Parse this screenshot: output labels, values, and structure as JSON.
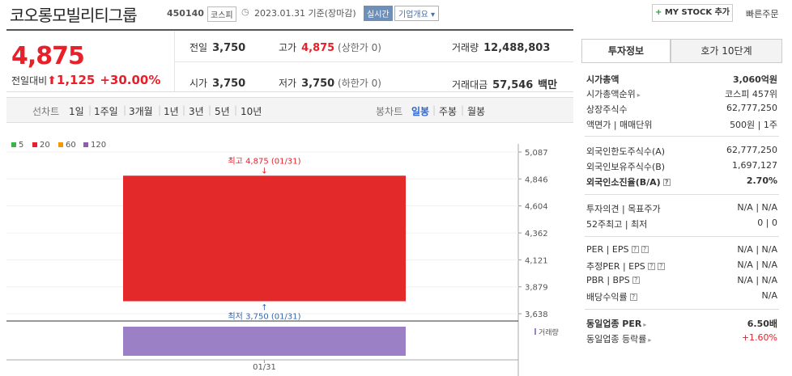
{
  "header": {
    "title": "코오롱모빌리티그룹",
    "code": "450140",
    "market": "코스피",
    "date": "2023.01.31  기준(장마감)",
    "realtime": "실시간",
    "company_info": "기업개요",
    "my_stock": "MY STOCK 추가",
    "my_stock_plus": "+",
    "quick_order": "빠른주문"
  },
  "price": {
    "current": "4,875",
    "change_label": "전일대비",
    "change_value": "1,125",
    "change_pct": "+30.00%",
    "prev_label": "전일",
    "prev": "3,750",
    "high_label": "고가",
    "high": "4,875",
    "high_note": "(상한가 0)",
    "volume_label": "거래량",
    "volume": "12,488,803",
    "open_label": "시가",
    "open": "3,750",
    "low_label": "저가",
    "low": "3,750",
    "low_note": "(하한가 0)",
    "amount_label": "거래대금",
    "amount": "57,546",
    "amount_unit": "백만"
  },
  "tabs": {
    "line_label": "선차트",
    "periods": [
      "1일",
      "1주일",
      "3개월",
      "1년",
      "3년",
      "5년",
      "10년"
    ],
    "candle_label": "봉차트",
    "candles": [
      "일봉",
      "주봉",
      "월봉"
    ]
  },
  "legend": [
    {
      "label": "5",
      "color": "#39b54a"
    },
    {
      "label": "20",
      "color": "#e8202a"
    },
    {
      "label": "60",
      "color": "#f39800"
    },
    {
      "label": "120",
      "color": "#8e5cb5"
    }
  ],
  "chart_data": {
    "type": "candlestick",
    "y_ticks": [
      "5,087",
      "4,846",
      "4,604",
      "4,362",
      "4,121",
      "3,879",
      "3,638"
    ],
    "ylim": [
      3638,
      5087
    ],
    "candle": {
      "date": "01/31",
      "open": 3750,
      "high": 4875,
      "low": 3750,
      "close": 4875
    },
    "high_annotation": "최고 4,875 (01/31)",
    "low_annotation": "최저 3,750 (01/31)",
    "volume_label": "거래량",
    "x_label": "01/31",
    "colors": {
      "candle": "#e3292a",
      "volume": "#9b80c6"
    }
  },
  "right": {
    "tab_active": "투자정보",
    "tab_other": "호가 10단계",
    "rows": [
      {
        "k": "시가총액",
        "v": "3,060억원",
        "bold": true
      },
      {
        "k": "시가총액순위",
        "v": "코스피 457위"
      },
      {
        "k": "상장주식수",
        "v": "62,777,250"
      },
      {
        "k": "액면가 | 매매단위",
        "v": "500원 | 1주"
      },
      {
        "k": "외국인한도주식수(A)",
        "v": "62,777,250"
      },
      {
        "k": "외국인보유주식수(B)",
        "v": "1,697,127"
      },
      {
        "k": "외국인소진율(B/A)",
        "v": "2.70%",
        "bold": true
      },
      {
        "k": "투자의견 | 목표주가",
        "v": "N/A | N/A"
      },
      {
        "k": "52주최고 | 최저",
        "v": "0 | 0"
      },
      {
        "k": "PER | EPS",
        "v": "N/A | N/A"
      },
      {
        "k": "추정PER | EPS",
        "v": "N/A | N/A"
      },
      {
        "k": "PBR | BPS",
        "v": "N/A | N/A"
      },
      {
        "k": "배당수익률",
        "v": "N/A"
      },
      {
        "k": "동일업종 PER",
        "v": "6.50배",
        "bold": true
      },
      {
        "k": "동일업종 등락률",
        "v": "+1.60%",
        "red": true
      }
    ]
  }
}
